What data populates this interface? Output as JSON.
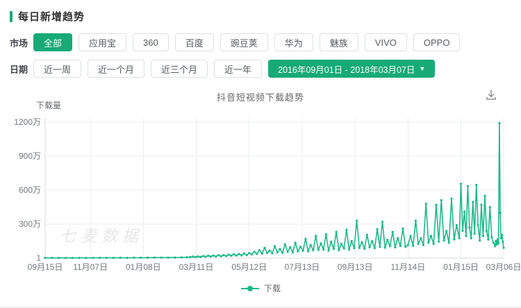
{
  "colors": {
    "accent_green": "#17aa77",
    "line_green": "#1cb988",
    "grid": "#ebedf0",
    "axis": "#d7dadd",
    "tick_text": "#73777f"
  },
  "header": {
    "title": "每日新增趋势"
  },
  "filters": {
    "market_label": "市场",
    "market_options": [
      "全部",
      "应用宝",
      "360",
      "百度",
      "豌豆荚",
      "华为",
      "魅族",
      "VIVO",
      "OPPO"
    ],
    "market_selected": "全部",
    "date_label": "日期",
    "date_options": [
      "近一周",
      "近一个月",
      "近三个月",
      "近一年"
    ],
    "date_range": "2016年09月01日 - 2018年03月07日",
    "caret": "▼"
  },
  "chart": {
    "title": "抖音短视频下载趋势",
    "watermark": "七麦数据",
    "legend": "下载",
    "download_icon": "download-icon"
  },
  "chart_data": {
    "type": "line",
    "title": "抖音短视频下载趋势",
    "ylabel": "下载量",
    "legend_position": "bottom",
    "grid": true,
    "values_unit": "万",
    "ylim_wan": [
      0,
      1200
    ],
    "x_range_days": [
      0,
      537
    ],
    "x_range_dates": [
      "2016-09-15",
      "2018-03-06"
    ],
    "y_ticks": [
      {
        "label": "1200万",
        "v": 1200
      },
      {
        "label": "900万",
        "v": 900
      },
      {
        "label": "600万",
        "v": 600
      },
      {
        "label": "300万",
        "v": 300
      },
      {
        "label": "1",
        "v": 0
      }
    ],
    "x_ticks": [
      {
        "label": "09月15日",
        "day": 0
      },
      {
        "label": "11月07日",
        "day": 53
      },
      {
        "label": "01月08日",
        "day": 115
      },
      {
        "label": "03月11日",
        "day": 177
      },
      {
        "label": "05月12日",
        "day": 239
      },
      {
        "label": "07月13日",
        "day": 301
      },
      {
        "label": "09月13日",
        "day": 363
      },
      {
        "label": "11月14日",
        "day": 425
      },
      {
        "label": "01月15日",
        "day": 487
      },
      {
        "label": "03月06日",
        "day": 537
      }
    ],
    "series": [
      {
        "name": "下载",
        "color": "#1cb988",
        "points": [
          [
            0,
            1
          ],
          [
            8,
            1
          ],
          [
            16,
            1
          ],
          [
            24,
            1
          ],
          [
            32,
            1
          ],
          [
            40,
            2
          ],
          [
            48,
            1
          ],
          [
            56,
            2
          ],
          [
            64,
            2
          ],
          [
            72,
            2
          ],
          [
            80,
            2
          ],
          [
            88,
            3
          ],
          [
            96,
            2
          ],
          [
            104,
            3
          ],
          [
            112,
            3
          ],
          [
            120,
            3
          ],
          [
            128,
            4
          ],
          [
            136,
            4
          ],
          [
            144,
            4
          ],
          [
            152,
            5
          ],
          [
            160,
            6
          ],
          [
            166,
            7
          ],
          [
            170,
            9
          ],
          [
            173,
            13
          ],
          [
            176,
            8
          ],
          [
            179,
            15
          ],
          [
            182,
            10
          ],
          [
            185,
            18
          ],
          [
            188,
            12
          ],
          [
            191,
            20
          ],
          [
            194,
            14
          ],
          [
            197,
            22
          ],
          [
            200,
            15
          ],
          [
            203,
            25
          ],
          [
            206,
            16
          ],
          [
            209,
            27
          ],
          [
            212,
            18
          ],
          [
            215,
            30
          ],
          [
            218,
            20
          ],
          [
            221,
            33
          ],
          [
            224,
            22
          ],
          [
            227,
            36
          ],
          [
            230,
            24
          ],
          [
            233,
            40
          ],
          [
            236,
            26
          ],
          [
            239,
            44
          ],
          [
            242,
            32
          ],
          [
            245,
            55
          ],
          [
            248,
            36
          ],
          [
            251,
            70
          ],
          [
            254,
            40
          ],
          [
            257,
            90
          ],
          [
            260,
            45
          ],
          [
            263,
            65
          ],
          [
            266,
            42
          ],
          [
            269,
            105
          ],
          [
            272,
            50
          ],
          [
            275,
            80
          ],
          [
            278,
            46
          ],
          [
            281,
            120
          ],
          [
            284,
            55
          ],
          [
            287,
            95
          ],
          [
            290,
            50
          ],
          [
            293,
            135
          ],
          [
            296,
            60
          ],
          [
            299,
            100
          ],
          [
            302,
            65
          ],
          [
            305,
            170
          ],
          [
            308,
            60
          ],
          [
            311,
            115
          ],
          [
            314,
            68
          ],
          [
            317,
            195
          ],
          [
            320,
            72
          ],
          [
            323,
            130
          ],
          [
            326,
            75
          ],
          [
            329,
            210
          ],
          [
            332,
            66
          ],
          [
            335,
            145
          ],
          [
            338,
            80
          ],
          [
            341,
            230
          ],
          [
            344,
            70
          ],
          [
            347,
            125
          ],
          [
            350,
            85
          ],
          [
            353,
            250
          ],
          [
            356,
            75
          ],
          [
            359,
            150
          ],
          [
            362,
            88
          ],
          [
            365,
            330
          ],
          [
            368,
            90
          ],
          [
            371,
            140
          ],
          [
            374,
            82
          ],
          [
            377,
            205
          ],
          [
            380,
            95
          ],
          [
            383,
            150
          ],
          [
            386,
            88
          ],
          [
            389,
            255
          ],
          [
            392,
            100
          ],
          [
            395,
            320
          ],
          [
            398,
            92
          ],
          [
            401,
            160
          ],
          [
            404,
            105
          ],
          [
            407,
            230
          ],
          [
            410,
            95
          ],
          [
            413,
            175
          ],
          [
            416,
            108
          ],
          [
            419,
            260
          ],
          [
            422,
            100
          ],
          [
            425,
            115
          ],
          [
            428,
            195
          ],
          [
            431,
            108
          ],
          [
            434,
            330
          ],
          [
            437,
            125
          ],
          [
            440,
            175
          ],
          [
            443,
            115
          ],
          [
            446,
            480
          ],
          [
            449,
            135
          ],
          [
            452,
            195
          ],
          [
            455,
            125
          ],
          [
            458,
            470
          ],
          [
            461,
            145
          ],
          [
            464,
            510
          ],
          [
            467,
            155
          ],
          [
            470,
            240
          ],
          [
            473,
            135
          ],
          [
            476,
            525
          ],
          [
            479,
            165
          ],
          [
            482,
            290
          ],
          [
            485,
            175
          ],
          [
            487,
            655
          ],
          [
            489,
            240
          ],
          [
            491,
            410
          ],
          [
            493,
            195
          ],
          [
            495,
            635
          ],
          [
            497,
            270
          ],
          [
            499,
            175
          ],
          [
            501,
            495
          ],
          [
            503,
            215
          ],
          [
            505,
            645
          ],
          [
            507,
            290
          ],
          [
            509,
            155
          ],
          [
            511,
            470
          ],
          [
            513,
            195
          ],
          [
            515,
            550
          ],
          [
            517,
            240
          ],
          [
            519,
            165
          ],
          [
            521,
            450
          ],
          [
            523,
            185
          ],
          [
            525,
            135
          ],
          [
            527,
            105
          ],
          [
            528,
            150
          ],
          [
            529,
            120
          ],
          [
            530,
            165
          ],
          [
            531,
            130
          ],
          [
            532,
            1190
          ],
          [
            533,
            400
          ],
          [
            534,
            175
          ],
          [
            535,
            205
          ],
          [
            536,
            145
          ],
          [
            537,
            90
          ]
        ]
      }
    ]
  }
}
